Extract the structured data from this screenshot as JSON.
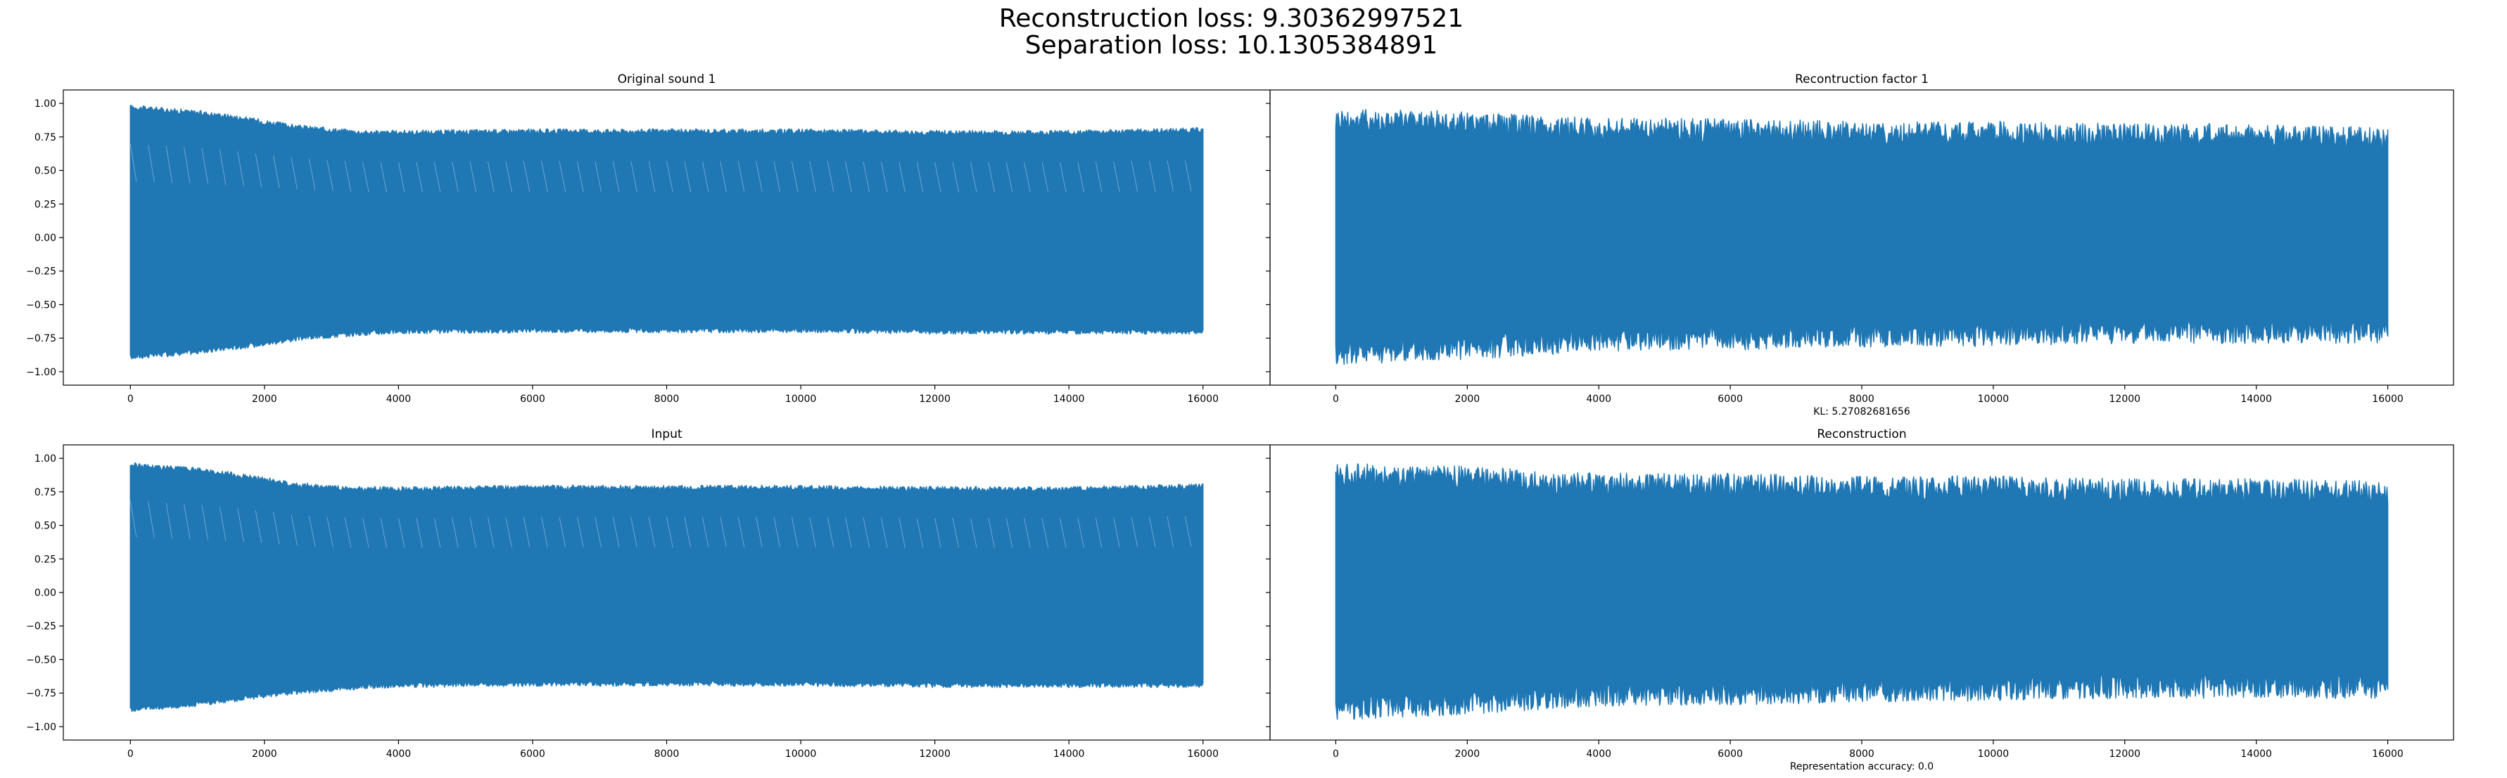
{
  "figure": {
    "suptitle_line1": "Reconstruction loss: 9.30362997521",
    "suptitle_line2": "Separation loss: 10.1305384891",
    "series_color": "#1f77b4"
  },
  "chart_data": [
    {
      "type": "line",
      "title": "Original sound 1",
      "xlim": [
        -1000,
        17000
      ],
      "ylim": [
        -1.1,
        1.1
      ],
      "xticks": [
        0,
        2000,
        4000,
        6000,
        8000,
        10000,
        12000,
        14000,
        16000
      ],
      "xtick_labels": [
        "0",
        "2000",
        "4000",
        "6000",
        "8000",
        "10000",
        "12000",
        "14000",
        "16000"
      ],
      "yticks": [
        1.0,
        0.75,
        0.5,
        0.25,
        0.0,
        -0.25,
        -0.5,
        -0.75,
        -1.0
      ],
      "ytick_labels": [
        "1.00",
        "0.75",
        "0.50",
        "0.25",
        "0.00",
        "−0.25",
        "−0.50",
        "−0.75",
        "−1.00"
      ],
      "note": "",
      "envelope": {
        "x": [
          0,
          500,
          1000,
          1500,
          2000,
          2500,
          3000,
          3500,
          4000,
          6000,
          8000,
          10000,
          12000,
          14000,
          16000
        ],
        "upper": [
          0.97,
          0.95,
          0.93,
          0.9,
          0.86,
          0.82,
          0.8,
          0.78,
          0.78,
          0.79,
          0.79,
          0.79,
          0.78,
          0.78,
          0.8
        ],
        "lower": [
          -0.89,
          -0.87,
          -0.85,
          -0.82,
          -0.79,
          -0.75,
          -0.73,
          -0.71,
          -0.7,
          -0.69,
          -0.69,
          -0.69,
          -0.7,
          -0.7,
          -0.7
        ]
      },
      "noisy": false
    },
    {
      "type": "line",
      "title": "Recontruction factor 1",
      "xlim": [
        -1000,
        17000
      ],
      "ylim": [
        -1.1,
        1.1
      ],
      "xticks": [
        0,
        2000,
        4000,
        6000,
        8000,
        10000,
        12000,
        14000,
        16000
      ],
      "xtick_labels": [
        "0",
        "2000",
        "4000",
        "6000",
        "8000",
        "10000",
        "12000",
        "14000",
        "16000"
      ],
      "yticks": [
        1.0,
        0.75,
        0.5,
        0.25,
        0.0,
        -0.25,
        -0.5,
        -0.75,
        -1.0
      ],
      "ytick_labels": [],
      "note": "KL: 5.27082681656",
      "envelope": {
        "x": [
          0,
          2000,
          4000,
          6000,
          8000,
          10000,
          12000,
          14000,
          16000
        ],
        "upper": [
          0.88,
          0.85,
          0.8,
          0.8,
          0.78,
          0.78,
          0.76,
          0.76,
          0.74
        ],
        "lower": [
          -0.86,
          -0.82,
          -0.76,
          -0.75,
          -0.73,
          -0.72,
          -0.7,
          -0.7,
          -0.7
        ]
      },
      "noisy": true
    },
    {
      "type": "line",
      "title": "Input",
      "xlim": [
        -1000,
        17000
      ],
      "ylim": [
        -1.1,
        1.1
      ],
      "xticks": [
        0,
        2000,
        4000,
        6000,
        8000,
        10000,
        12000,
        14000,
        16000
      ],
      "xtick_labels": [
        "0",
        "2000",
        "4000",
        "6000",
        "8000",
        "10000",
        "12000",
        "14000",
        "16000"
      ],
      "yticks": [
        1.0,
        0.75,
        0.5,
        0.25,
        0.0,
        -0.25,
        -0.5,
        -0.75,
        -1.0
      ],
      "ytick_labels": [
        "1.00",
        "0.75",
        "0.50",
        "0.25",
        "0.00",
        "−0.25",
        "−0.50",
        "−0.75",
        "−1.00"
      ],
      "note": "",
      "envelope": {
        "x": [
          0,
          500,
          1000,
          1500,
          2000,
          2500,
          3000,
          3500,
          4000,
          6000,
          8000,
          10000,
          12000,
          14000,
          16000
        ],
        "upper": [
          0.95,
          0.93,
          0.91,
          0.88,
          0.84,
          0.8,
          0.78,
          0.77,
          0.77,
          0.78,
          0.78,
          0.78,
          0.77,
          0.77,
          0.79
        ],
        "lower": [
          -0.87,
          -0.85,
          -0.83,
          -0.8,
          -0.77,
          -0.74,
          -0.72,
          -0.7,
          -0.69,
          -0.68,
          -0.68,
          -0.68,
          -0.69,
          -0.69,
          -0.69
        ]
      },
      "noisy": false
    },
    {
      "type": "line",
      "title": "Reconstruction",
      "xlim": [
        -1000,
        17000
      ],
      "ylim": [
        -1.1,
        1.1
      ],
      "xticks": [
        0,
        2000,
        4000,
        6000,
        8000,
        10000,
        12000,
        14000,
        16000
      ],
      "xtick_labels": [
        "0",
        "2000",
        "4000",
        "6000",
        "8000",
        "10000",
        "12000",
        "14000",
        "16000"
      ],
      "yticks": [
        1.0,
        0.75,
        0.5,
        0.25,
        0.0,
        -0.25,
        -0.5,
        -0.75,
        -1.0
      ],
      "ytick_labels": [],
      "note": "Representation accuracy: 0.0",
      "envelope": {
        "x": [
          0,
          2000,
          4000,
          6000,
          8000,
          10000,
          12000,
          14000,
          16000
        ],
        "upper": [
          0.88,
          0.85,
          0.8,
          0.8,
          0.78,
          0.78,
          0.76,
          0.76,
          0.74
        ],
        "lower": [
          -0.86,
          -0.82,
          -0.76,
          -0.75,
          -0.73,
          -0.72,
          -0.7,
          -0.7,
          -0.7
        ]
      },
      "noisy": true
    }
  ]
}
